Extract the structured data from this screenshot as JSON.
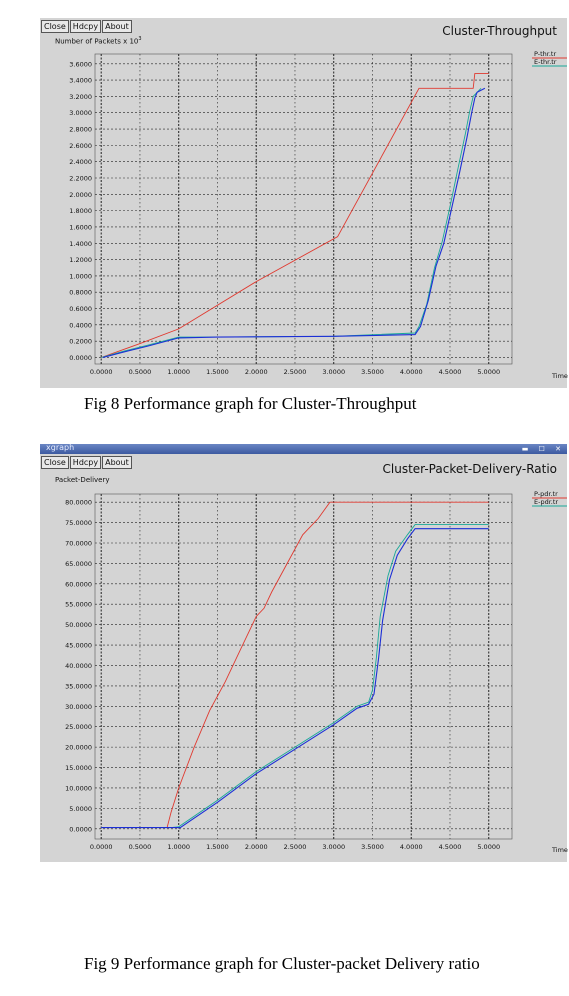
{
  "colors": {
    "panel": "#d4d4d4",
    "plot_bg": "#d4d4d4",
    "red": "#e03a30",
    "blue": "#1c2fd6",
    "teal": "#18a898",
    "grid": "#222222"
  },
  "figures": [
    {
      "buttons": [
        "Close",
        "Hdcpy",
        "About"
      ],
      "caption": "Fig 8 Performance graph for Cluster-Throughput",
      "chart_data": {
        "type": "line",
        "title": "Cluster-Throughput",
        "ylabel": "Number of Packets x 10",
        "ylabel_sup": "3",
        "xlabel": "Time",
        "xlim": [
          -0.08,
          5.3
        ],
        "ylim": [
          -0.08,
          3.72
        ],
        "xticks": [
          "0.0000",
          "0.5000",
          "1.0000",
          "1.5000",
          "2.0000",
          "2.5000",
          "3.0000",
          "3.5000",
          "4.0000",
          "4.5000",
          "5.0000"
        ],
        "yticks": [
          "0.0000",
          "0.2000",
          "0.4000",
          "0.6000",
          "0.8000",
          "1.0000",
          "1.2000",
          "1.4000",
          "1.6000",
          "1.8000",
          "2.0000",
          "2.2000",
          "2.4000",
          "2.6000",
          "2.8000",
          "3.0000",
          "3.2000",
          "3.4000",
          "3.6000"
        ],
        "grid": true,
        "legend_position": "top-right",
        "series": [
          {
            "name": "P-thr.tr",
            "color": "red",
            "points": [
              [
                0,
                0
              ],
              [
                0.5,
                0.17
              ],
              [
                1.0,
                0.35
              ],
              [
                2.0,
                0.93
              ],
              [
                3.05,
                1.48
              ],
              [
                4.1,
                3.3
              ],
              [
                4.8,
                3.3
              ],
              [
                4.82,
                3.48
              ],
              [
                5.0,
                3.48
              ]
            ]
          },
          {
            "name": "E-thr.tr",
            "color": "teal",
            "points": [
              [
                0,
                0
              ],
              [
                0.3,
                0.08
              ],
              [
                0.6,
                0.15
              ],
              [
                1.0,
                0.25
              ],
              [
                1.5,
                0.25
              ],
              [
                3.0,
                0.26
              ],
              [
                4.05,
                0.3
              ],
              [
                4.1,
                0.38
              ],
              [
                4.2,
                0.65
              ],
              [
                4.3,
                1.1
              ],
              [
                4.4,
                1.42
              ],
              [
                4.5,
                1.85
              ],
              [
                4.6,
                2.3
              ],
              [
                4.7,
                2.75
              ],
              [
                4.75,
                3.0
              ],
              [
                4.8,
                3.2
              ],
              [
                4.9,
                3.3
              ]
            ]
          },
          {
            "name": "",
            "color": "blue",
            "points": [
              [
                0.02,
                0
              ],
              [
                0.3,
                0.07
              ],
              [
                0.6,
                0.14
              ],
              [
                1.0,
                0.24
              ],
              [
                1.5,
                0.25
              ],
              [
                3.0,
                0.26
              ],
              [
                4.05,
                0.28
              ],
              [
                4.12,
                0.38
              ],
              [
                4.22,
                0.7
              ],
              [
                4.32,
                1.12
              ],
              [
                4.42,
                1.4
              ],
              [
                4.52,
                1.82
              ],
              [
                4.62,
                2.25
              ],
              [
                4.72,
                2.7
              ],
              [
                4.78,
                3.0
              ],
              [
                4.82,
                3.18
              ],
              [
                4.85,
                3.25
              ],
              [
                4.95,
                3.3
              ]
            ]
          }
        ]
      }
    },
    {
      "titlebar_text": "xgraph",
      "buttons": [
        "Close",
        "Hdcpy",
        "About"
      ],
      "caption": "Fig 9 Performance graph for Cluster-packet Delivery ratio",
      "chart_data": {
        "type": "line",
        "title": "Cluster-Packet-Delivery-Ratio",
        "ylabel": "Packet-Delivery",
        "xlabel": "Time",
        "xlim": [
          -0.08,
          5.3
        ],
        "ylim": [
          -2.5,
          82.0
        ],
        "xticks": [
          "0.0000",
          "0.5000",
          "1.0000",
          "1.5000",
          "2.0000",
          "2.5000",
          "3.0000",
          "3.5000",
          "4.0000",
          "4.5000",
          "5.0000"
        ],
        "yticks": [
          "0.0000",
          "5.0000",
          "10.0000",
          "15.0000",
          "20.0000",
          "25.0000",
          "30.0000",
          "35.0000",
          "40.0000",
          "45.0000",
          "50.0000",
          "55.0000",
          "60.0000",
          "65.0000",
          "70.0000",
          "75.0000",
          "80.0000"
        ],
        "grid": true,
        "legend_position": "top-right",
        "series": [
          {
            "name": "P-pdr.tr",
            "color": "red",
            "points": [
              [
                0,
                0.3
              ],
              [
                0.85,
                0.3
              ],
              [
                0.9,
                4
              ],
              [
                1.0,
                10
              ],
              [
                1.2,
                20
              ],
              [
                1.4,
                29
              ],
              [
                1.6,
                36
              ],
              [
                1.8,
                44
              ],
              [
                2.0,
                52
              ],
              [
                2.1,
                54
              ],
              [
                2.2,
                58
              ],
              [
                2.4,
                65
              ],
              [
                2.6,
                72
              ],
              [
                2.8,
                76
              ],
              [
                2.95,
                80
              ],
              [
                5.0,
                80
              ]
            ]
          },
          {
            "name": "E-pdr.tr",
            "color": "teal",
            "points": [
              [
                0,
                0.3
              ],
              [
                0.9,
                0.3
              ],
              [
                1.0,
                0.5
              ],
              [
                1.5,
                7
              ],
              [
                2.0,
                14
              ],
              [
                2.5,
                20
              ],
              [
                3.0,
                26
              ],
              [
                3.3,
                30
              ],
              [
                3.45,
                31
              ],
              [
                3.5,
                34
              ],
              [
                3.55,
                42
              ],
              [
                3.6,
                52
              ],
              [
                3.7,
                62
              ],
              [
                3.8,
                68
              ],
              [
                3.95,
                72
              ],
              [
                4.05,
                74.5
              ],
              [
                5.0,
                74.5
              ]
            ]
          },
          {
            "name": "",
            "color": "blue",
            "points": [
              [
                0,
                0.3
              ],
              [
                0.9,
                0.3
              ],
              [
                1.02,
                0.3
              ],
              [
                1.5,
                6.5
              ],
              [
                2.0,
                13.5
              ],
              [
                2.5,
                19.5
              ],
              [
                3.0,
                25.5
              ],
              [
                3.3,
                29.5
              ],
              [
                3.45,
                30.5
              ],
              [
                3.52,
                33
              ],
              [
                3.58,
                42
              ],
              [
                3.63,
                51
              ],
              [
                3.72,
                61
              ],
              [
                3.82,
                67
              ],
              [
                3.95,
                71
              ],
              [
                4.05,
                73.5
              ],
              [
                5.0,
                73.5
              ]
            ]
          }
        ]
      }
    }
  ]
}
